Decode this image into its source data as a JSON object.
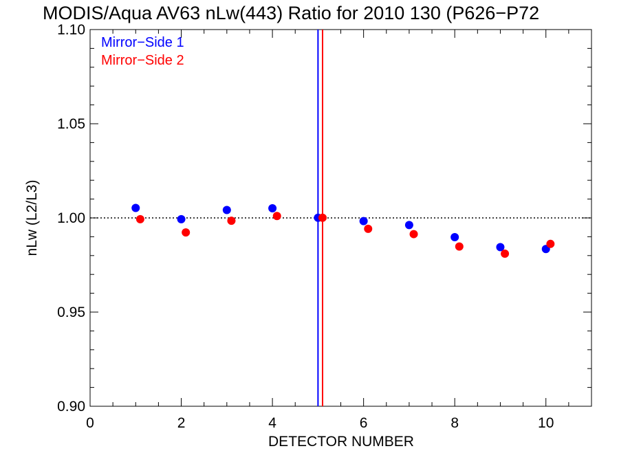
{
  "chart_data": {
    "type": "scatter",
    "title": "MODIS/Aqua AV63 nLw(443) Ratio for 2010 130 (P626−P72",
    "xlabel": "DETECTOR NUMBER",
    "ylabel": "nLw (L2/L3)",
    "xlim": [
      0,
      11
    ],
    "ylim": [
      0.9,
      1.1
    ],
    "xticks": [
      0,
      2,
      4,
      6,
      8,
      10
    ],
    "xtick_labels": [
      "0",
      "2",
      "4",
      "6",
      "8",
      "10"
    ],
    "yticks": [
      0.9,
      0.95,
      1.0,
      1.05,
      1.1
    ],
    "ytick_labels": [
      "0.90",
      "0.95",
      "1.00",
      "1.05",
      "1.10"
    ],
    "reference_line_y": 1.0,
    "legend_placement": "top-left",
    "series": [
      {
        "name": "Mirror−Side 1",
        "color": "#0000ff",
        "x": [
          1,
          2,
          3,
          4,
          5,
          6,
          7,
          8,
          9,
          10
        ],
        "y": [
          1.0053,
          0.9993,
          1.0042,
          1.0051,
          1.0001,
          0.9983,
          0.9962,
          0.9898,
          0.9845,
          0.9835
        ],
        "vertical_marker_x": 5.0
      },
      {
        "name": "Mirror−Side 2",
        "color": "#ff0000",
        "x": [
          1.1,
          2.1,
          3.1,
          4.1,
          5.1,
          6.1,
          7.1,
          8.1,
          9.1,
          10.1
        ],
        "y": [
          0.9993,
          0.9923,
          0.9985,
          1.001,
          1.0001,
          0.9942,
          0.9914,
          0.9848,
          0.981,
          0.9862
        ],
        "vertical_marker_x": 5.1
      }
    ]
  }
}
